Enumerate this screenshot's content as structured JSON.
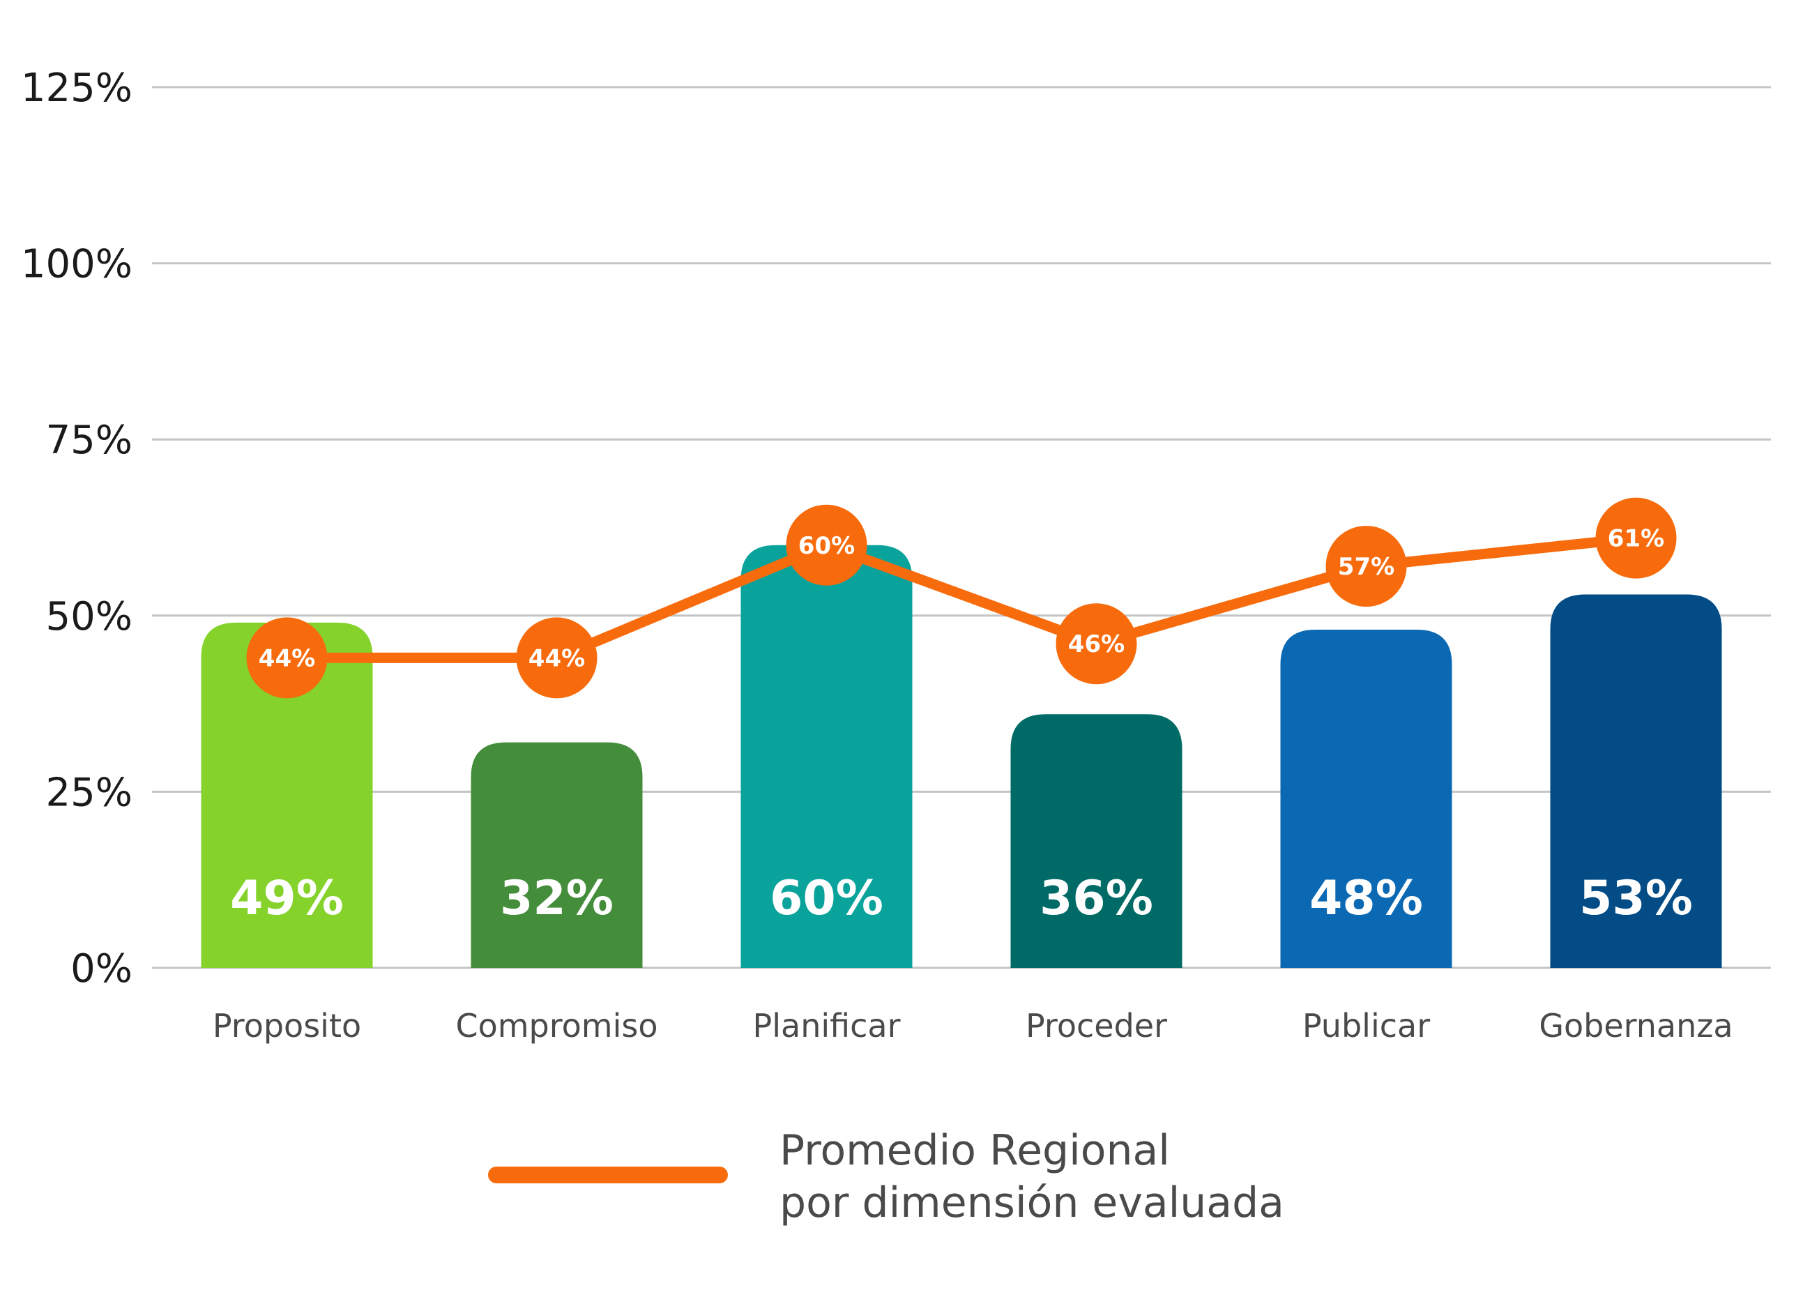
{
  "chart_data": {
    "type": "bar",
    "categories": [
      "Proposito",
      "Compromiso",
      "Planificar",
      "Proceder",
      "Publicar",
      "Gobernanza"
    ],
    "ylim": [
      0,
      125
    ],
    "yticks": [
      0,
      25,
      50,
      75,
      100,
      125
    ],
    "ytick_labels": [
      "0%",
      "25%",
      "50%",
      "75%",
      "100%",
      "125%"
    ],
    "grid": true,
    "series": [
      {
        "kind": "bar",
        "values": [
          49,
          32,
          60,
          36,
          48,
          53
        ],
        "value_labels": [
          "49%",
          "32%",
          "60%",
          "36%",
          "48%",
          "53%"
        ],
        "colors": [
          "#84d22a",
          "#448d3a",
          "#0aa39c",
          "#006b66",
          "#0b68b3",
          "#034c86"
        ]
      },
      {
        "kind": "line",
        "name": "Promedio Regional\npor dimensión evaluada",
        "values": [
          44,
          44,
          60,
          46,
          57,
          61
        ],
        "value_labels": [
          "44%",
          "44%",
          "60%",
          "46%",
          "57%",
          "61%"
        ],
        "color": "#f76b0c"
      }
    ],
    "legend": {
      "position": "bottom-center",
      "line1": "Promedio Regional",
      "line2": "por dimensión evaluada"
    }
  }
}
